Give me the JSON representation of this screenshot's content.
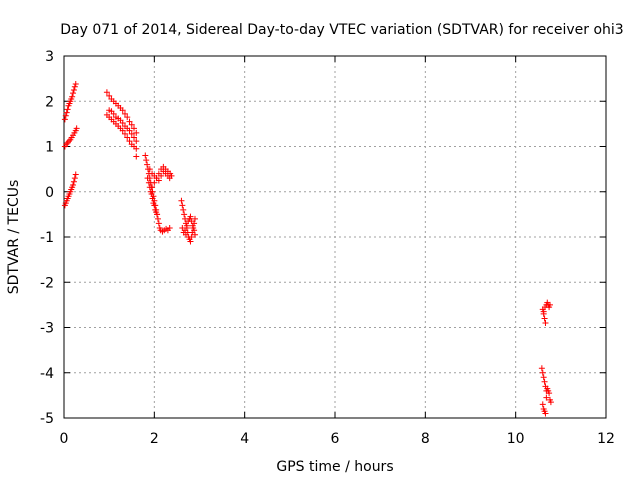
{
  "chart_data": {
    "type": "scatter",
    "title": "Day 071 of 2014, Sidereal Day-to-day VTEC variation (SDTVAR) for receiver ohi3",
    "xlabel": "GPS time / hours",
    "ylabel": "SDTVAR / TECUs",
    "xlim": [
      0,
      12
    ],
    "ylim": [
      -5,
      3
    ],
    "xticks": [
      "0",
      "2",
      "4",
      "6",
      "8",
      "10",
      "12"
    ],
    "yticks": [
      "-5",
      "-4",
      "-3",
      "-2",
      "-1",
      "0",
      "1",
      "2",
      "3"
    ],
    "grid": true,
    "marker": "plus",
    "color": "#ff0000",
    "series": [
      {
        "name": "SDTVAR",
        "points": [
          [
            0.02,
            -0.3
          ],
          [
            0.04,
            -0.25
          ],
          [
            0.06,
            -0.2
          ],
          [
            0.08,
            -0.15
          ],
          [
            0.1,
            -0.1
          ],
          [
            0.12,
            -0.05
          ],
          [
            0.14,
            0.0
          ],
          [
            0.16,
            0.05
          ],
          [
            0.18,
            0.1
          ],
          [
            0.2,
            0.15
          ],
          [
            0.22,
            0.22
          ],
          [
            0.24,
            0.3
          ],
          [
            0.26,
            0.38
          ],
          [
            0.02,
            1.0
          ],
          [
            0.05,
            1.05
          ],
          [
            0.08,
            1.08
          ],
          [
            0.11,
            1.12
          ],
          [
            0.14,
            1.15
          ],
          [
            0.17,
            1.2
          ],
          [
            0.2,
            1.25
          ],
          [
            0.23,
            1.3
          ],
          [
            0.26,
            1.35
          ],
          [
            0.28,
            1.4
          ],
          [
            0.02,
            1.6
          ],
          [
            0.04,
            1.68
          ],
          [
            0.06,
            1.75
          ],
          [
            0.08,
            1.82
          ],
          [
            0.1,
            1.9
          ],
          [
            0.12,
            1.95
          ],
          [
            0.14,
            2.0
          ],
          [
            0.16,
            2.05
          ],
          [
            0.18,
            2.1
          ],
          [
            0.2,
            2.18
          ],
          [
            0.22,
            2.25
          ],
          [
            0.24,
            2.32
          ],
          [
            0.26,
            2.38
          ],
          [
            0.95,
            2.2
          ],
          [
            1.0,
            2.12
          ],
          [
            1.05,
            2.05
          ],
          [
            1.1,
            2.0
          ],
          [
            1.15,
            1.95
          ],
          [
            1.2,
            1.9
          ],
          [
            1.25,
            1.85
          ],
          [
            1.3,
            1.8
          ],
          [
            1.35,
            1.72
          ],
          [
            1.4,
            1.65
          ],
          [
            1.45,
            1.55
          ],
          [
            1.5,
            1.48
          ],
          [
            1.55,
            1.4
          ],
          [
            1.6,
            1.3
          ],
          [
            0.95,
            1.7
          ],
          [
            1.0,
            1.65
          ],
          [
            1.05,
            1.6
          ],
          [
            1.1,
            1.55
          ],
          [
            1.15,
            1.5
          ],
          [
            1.2,
            1.45
          ],
          [
            1.25,
            1.4
          ],
          [
            1.3,
            1.35
          ],
          [
            1.35,
            1.28
          ],
          [
            1.4,
            1.2
          ],
          [
            1.45,
            1.12
          ],
          [
            1.5,
            1.05
          ],
          [
            1.55,
            1.0
          ],
          [
            1.6,
            0.95
          ],
          [
            1.0,
            1.8
          ],
          [
            1.05,
            1.78
          ],
          [
            1.1,
            1.72
          ],
          [
            1.15,
            1.65
          ],
          [
            1.2,
            1.62
          ],
          [
            1.25,
            1.58
          ],
          [
            1.3,
            1.52
          ],
          [
            1.35,
            1.45
          ],
          [
            1.4,
            1.4
          ],
          [
            1.45,
            1.35
          ],
          [
            1.5,
            1.28
          ],
          [
            1.55,
            1.2
          ],
          [
            1.6,
            1.12
          ],
          [
            1.6,
            0.78
          ],
          [
            1.8,
            0.8
          ],
          [
            1.82,
            0.7
          ],
          [
            1.84,
            0.6
          ],
          [
            1.86,
            0.5
          ],
          [
            1.88,
            0.4
          ],
          [
            1.9,
            0.3
          ],
          [
            1.92,
            0.2
          ],
          [
            1.94,
            0.1
          ],
          [
            1.96,
            0.0
          ],
          [
            1.98,
            -0.1
          ],
          [
            2.0,
            -0.2
          ],
          [
            2.02,
            -0.3
          ],
          [
            2.04,
            -0.4
          ],
          [
            2.06,
            -0.5
          ],
          [
            2.08,
            -0.6
          ],
          [
            2.1,
            -0.7
          ],
          [
            2.12,
            -0.8
          ],
          [
            2.14,
            -0.85
          ],
          [
            2.18,
            -0.88
          ],
          [
            2.22,
            -0.85
          ],
          [
            2.26,
            -0.82
          ],
          [
            2.3,
            -0.85
          ],
          [
            2.34,
            -0.8
          ],
          [
            1.85,
            0.3
          ],
          [
            1.88,
            0.2
          ],
          [
            1.9,
            0.1
          ],
          [
            1.92,
            0.0
          ],
          [
            1.94,
            -0.05
          ],
          [
            1.96,
            -0.15
          ],
          [
            1.98,
            -0.25
          ],
          [
            2.0,
            -0.3
          ],
          [
            2.02,
            -0.4
          ],
          [
            2.04,
            -0.45
          ],
          [
            2.06,
            -0.5
          ],
          [
            1.95,
            0.1
          ],
          [
            2.0,
            0.2
          ],
          [
            2.05,
            0.3
          ],
          [
            2.1,
            0.4
          ],
          [
            2.15,
            0.5
          ],
          [
            2.2,
            0.55
          ],
          [
            2.25,
            0.5
          ],
          [
            2.3,
            0.45
          ],
          [
            2.35,
            0.4
          ],
          [
            2.38,
            0.35
          ],
          [
            1.9,
            0.5
          ],
          [
            1.95,
            0.4
          ],
          [
            2.0,
            0.35
          ],
          [
            2.05,
            0.3
          ],
          [
            2.1,
            0.25
          ],
          [
            2.15,
            0.35
          ],
          [
            2.2,
            0.45
          ],
          [
            2.25,
            0.4
          ],
          [
            2.3,
            0.35
          ],
          [
            2.34,
            0.3
          ],
          [
            2.6,
            -0.2
          ],
          [
            2.62,
            -0.3
          ],
          [
            2.64,
            -0.4
          ],
          [
            2.66,
            -0.5
          ],
          [
            2.68,
            -0.6
          ],
          [
            2.7,
            -0.7
          ],
          [
            2.72,
            -0.8
          ],
          [
            2.74,
            -0.9
          ],
          [
            2.76,
            -1.0
          ],
          [
            2.78,
            -1.05
          ],
          [
            2.8,
            -1.1
          ],
          [
            2.82,
            -1.0
          ],
          [
            2.84,
            -0.9
          ],
          [
            2.86,
            -0.8
          ],
          [
            2.88,
            -0.7
          ],
          [
            2.9,
            -0.6
          ],
          [
            2.62,
            -0.8
          ],
          [
            2.65,
            -0.9
          ],
          [
            2.68,
            -0.85
          ],
          [
            2.7,
            -0.95
          ],
          [
            2.72,
            -0.75
          ],
          [
            2.75,
            -0.65
          ],
          [
            2.78,
            -0.6
          ],
          [
            2.8,
            -0.55
          ],
          [
            2.82,
            -0.65
          ],
          [
            2.85,
            -0.75
          ],
          [
            2.88,
            -0.85
          ],
          [
            2.9,
            -0.95
          ],
          [
            10.6,
            -2.6
          ],
          [
            10.62,
            -2.7
          ],
          [
            10.64,
            -2.8
          ],
          [
            10.66,
            -2.9
          ],
          [
            10.62,
            -2.65
          ],
          [
            10.65,
            -2.55
          ],
          [
            10.68,
            -2.5
          ],
          [
            10.7,
            -2.45
          ],
          [
            10.72,
            -2.5
          ],
          [
            10.74,
            -2.55
          ],
          [
            10.76,
            -2.5
          ],
          [
            10.58,
            -3.9
          ],
          [
            10.6,
            -4.0
          ],
          [
            10.62,
            -4.1
          ],
          [
            10.64,
            -4.2
          ],
          [
            10.66,
            -4.3
          ],
          [
            10.68,
            -4.4
          ],
          [
            10.7,
            -4.35
          ],
          [
            10.72,
            -4.4
          ],
          [
            10.74,
            -4.45
          ],
          [
            10.76,
            -4.6
          ],
          [
            10.78,
            -4.65
          ],
          [
            10.6,
            -4.7
          ],
          [
            10.62,
            -4.8
          ],
          [
            10.64,
            -4.85
          ],
          [
            10.66,
            -4.9
          ],
          [
            10.68,
            -4.55
          ]
        ]
      }
    ]
  }
}
